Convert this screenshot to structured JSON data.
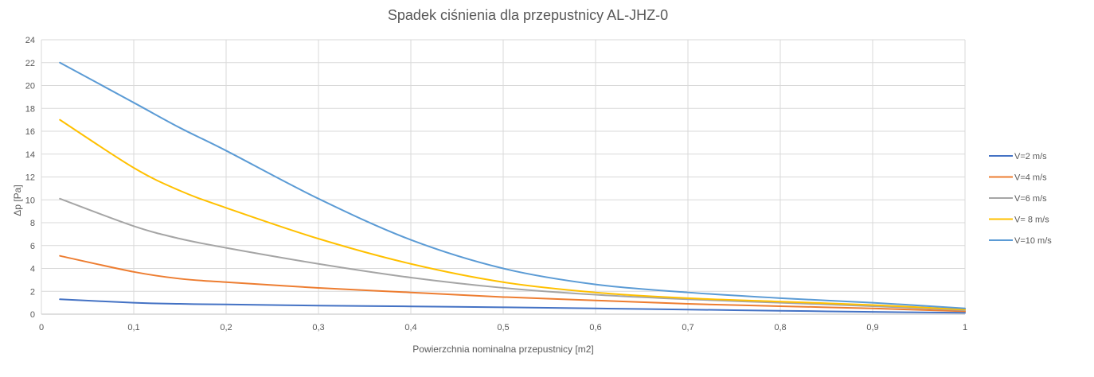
{
  "chart_data": {
    "type": "line",
    "title": "Spadek ciśnienia dla przepustnicy AL-JHZ-0",
    "xlabel": "Powierzchnia nominalna przepustnicy [m2]",
    "ylabel": "Δp [Pa]",
    "xlim": [
      0,
      1
    ],
    "ylim": [
      0,
      24
    ],
    "xticks": [
      0,
      0.1,
      0.2,
      0.3,
      0.4,
      0.5,
      0.6,
      0.7,
      0.8,
      0.9,
      1
    ],
    "xtick_labels": [
      "0",
      "0,1",
      "0,2",
      "0,3",
      "0,4",
      "0,5",
      "0,6",
      "0,7",
      "0,8",
      "0,9",
      "1"
    ],
    "yticks": [
      0,
      2,
      4,
      6,
      8,
      10,
      12,
      14,
      16,
      18,
      20,
      22,
      24
    ],
    "ytick_labels": [
      "0",
      "2",
      "4",
      "6",
      "8",
      "10",
      "12",
      "14",
      "16",
      "18",
      "20",
      "22",
      "24"
    ],
    "grid": "vertical and horizontal",
    "legend_position": "right",
    "x": [
      0.02,
      0.1,
      0.15,
      0.2,
      0.3,
      0.4,
      0.5,
      0.6,
      0.7,
      0.8,
      0.9,
      1.0
    ],
    "series": [
      {
        "name": "V=2 m/s",
        "color": "#4472c4",
        "values": [
          1.3,
          1.0,
          0.9,
          0.85,
          0.75,
          0.68,
          0.6,
          0.5,
          0.4,
          0.3,
          0.2,
          0.12
        ]
      },
      {
        "name": "V=4 m/s",
        "color": "#ed7d31",
        "values": [
          5.1,
          3.7,
          3.1,
          2.8,
          2.3,
          1.9,
          1.5,
          1.2,
          0.9,
          0.7,
          0.5,
          0.25
        ]
      },
      {
        "name": "V=6 m/s",
        "color": "#a5a5a5",
        "values": [
          10.1,
          7.7,
          6.6,
          5.8,
          4.4,
          3.2,
          2.3,
          1.7,
          1.3,
          1.0,
          0.7,
          0.35
        ]
      },
      {
        "name": "V= 8 m/s",
        "color": "#ffc000",
        "values": [
          17.0,
          12.8,
          10.8,
          9.3,
          6.6,
          4.4,
          2.8,
          1.9,
          1.4,
          1.1,
          0.8,
          0.4
        ]
      },
      {
        "name": "V=10 m/s",
        "color": "#5b9bd5",
        "values": [
          22.0,
          18.5,
          16.3,
          14.3,
          10.1,
          6.5,
          4.0,
          2.6,
          1.9,
          1.4,
          1.0,
          0.5
        ]
      }
    ]
  }
}
